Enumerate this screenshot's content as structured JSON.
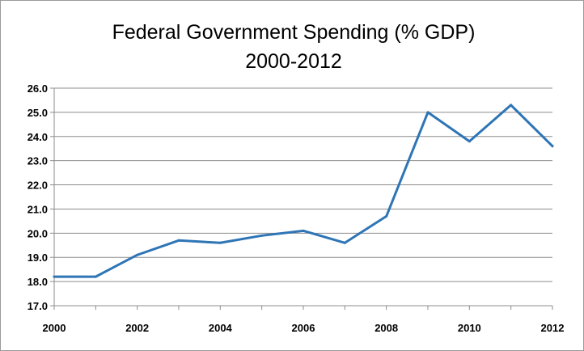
{
  "chart_data": {
    "type": "line",
    "title_lines": [
      "Federal Government Spending (% GDP)",
      "2000-2012"
    ],
    "x": [
      2000,
      2001,
      2002,
      2003,
      2004,
      2005,
      2006,
      2007,
      2008,
      2009,
      2010,
      2011,
      2012
    ],
    "series": [
      {
        "values": [
          18.2,
          18.2,
          19.1,
          19.7,
          19.6,
          19.9,
          20.1,
          19.6,
          20.7,
          25.0,
          23.8,
          25.3,
          23.6
        ],
        "color": "#2e75b6"
      }
    ],
    "xlabel": "",
    "ylabel": "",
    "xlim": [
      2000,
      2012
    ],
    "ylim": [
      17.0,
      26.0
    ],
    "x_ticks": [
      "2000",
      "2002",
      "2004",
      "2006",
      "2008",
      "2010",
      "2012"
    ],
    "y_ticks": [
      "17.0",
      "18.0",
      "19.0",
      "20.0",
      "21.0",
      "22.0",
      "23.0",
      "24.0",
      "25.0",
      "26.0"
    ],
    "grid": "horizontal",
    "legend": "none",
    "colors": {
      "grid": "#8c8c8c",
      "border": "#9a9a9a"
    }
  }
}
